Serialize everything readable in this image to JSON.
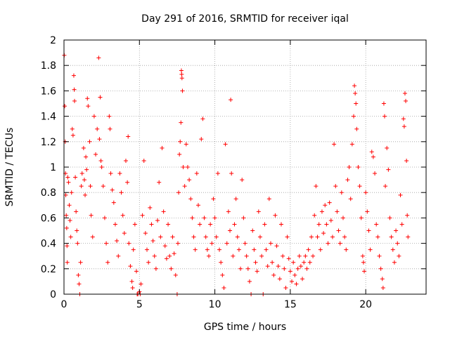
{
  "chart_data": {
    "type": "scatter",
    "title": "Day 291 of 2016, SRMTID for receiver iqal",
    "xlabel": "GPS time / hours",
    "ylabel": "SRMTID / TECUs",
    "xlim": [
      0,
      24
    ],
    "ylim": [
      0,
      2
    ],
    "grid": true,
    "marker": "+",
    "series_color": "#ff0000",
    "x_ticks": [
      0,
      5,
      10,
      15,
      20
    ],
    "x_tick_labels": [
      "0",
      "5",
      "10",
      "15",
      "20"
    ],
    "y_ticks": [
      0,
      0.2,
      0.4,
      0.6,
      0.8,
      1,
      1.2,
      1.4,
      1.6,
      1.8,
      2
    ],
    "y_tick_labels": [
      "0",
      "0.2",
      "0.4",
      "0.6",
      "0.8",
      "1",
      "1.2",
      "1.4",
      "1.6",
      "1.8",
      "2"
    ],
    "series": [
      {
        "name": "SRMTID",
        "points": [
          [
            0.02,
            1.88
          ],
          [
            0.05,
            1.48
          ],
          [
            0.08,
            1.2
          ],
          [
            0.1,
            0.95
          ],
          [
            0.12,
            0.78
          ],
          [
            0.15,
            0.62
          ],
          [
            0.18,
            0.52
          ],
          [
            0.2,
            0.38
          ],
          [
            0.22,
            0.25
          ],
          [
            0.25,
            0.92
          ],
          [
            0.3,
            0.88
          ],
          [
            0.35,
            0.7
          ],
          [
            0.4,
            0.58
          ],
          [
            0.45,
            0.45
          ],
          [
            0.5,
            0.8
          ],
          [
            0.55,
            1.3
          ],
          [
            0.6,
            1.25
          ],
          [
            0.65,
            1.72
          ],
          [
            0.68,
            1.61
          ],
          [
            0.7,
            1.52
          ],
          [
            0.75,
            0.92
          ],
          [
            0.8,
            0.65
          ],
          [
            0.85,
            0.5
          ],
          [
            0.9,
            0.4
          ],
          [
            0.95,
            0.15
          ],
          [
            1.0,
            0.08
          ],
          [
            1.05,
            0.0
          ],
          [
            1.1,
            0.25
          ],
          [
            1.15,
            0.85
          ],
          [
            1.2,
            0.95
          ],
          [
            1.3,
            1.15
          ],
          [
            1.35,
            0.9
          ],
          [
            1.4,
            0.78
          ],
          [
            1.45,
            1.08
          ],
          [
            1.5,
            0.98
          ],
          [
            1.55,
            1.54
          ],
          [
            1.6,
            1.48
          ],
          [
            1.7,
            1.2
          ],
          [
            1.75,
            0.85
          ],
          [
            1.8,
            0.62
          ],
          [
            1.9,
            0.45
          ],
          [
            2.0,
            1.4
          ],
          [
            2.1,
            1.1
          ],
          [
            2.2,
            1.3
          ],
          [
            2.3,
            1.86
          ],
          [
            2.35,
            1.22
          ],
          [
            2.4,
            1.55
          ],
          [
            2.45,
            1.05
          ],
          [
            2.5,
            1.0
          ],
          [
            2.6,
            0.85
          ],
          [
            2.7,
            0.6
          ],
          [
            2.8,
            0.4
          ],
          [
            2.9,
            0.25
          ],
          [
            3.0,
            1.4
          ],
          [
            3.05,
            1.3
          ],
          [
            3.1,
            0.95
          ],
          [
            3.2,
            0.82
          ],
          [
            3.3,
            0.72
          ],
          [
            3.4,
            0.55
          ],
          [
            3.5,
            0.42
          ],
          [
            3.6,
            0.3
          ],
          [
            3.7,
            0.95
          ],
          [
            3.8,
            0.8
          ],
          [
            3.9,
            0.62
          ],
          [
            4.0,
            0.48
          ],
          [
            4.1,
            1.05
          ],
          [
            4.2,
            0.88
          ],
          [
            4.25,
            1.24
          ],
          [
            4.3,
            0.4
          ],
          [
            4.4,
            0.22
          ],
          [
            4.5,
            0.1
          ],
          [
            4.55,
            0.05
          ],
          [
            4.6,
            0.35
          ],
          [
            4.7,
            0.55
          ],
          [
            4.8,
            0.18
          ],
          [
            4.85,
            0.0
          ],
          [
            4.9,
            0.0
          ],
          [
            5.0,
            0.02
          ],
          [
            5.05,
            0.0
          ],
          [
            5.1,
            0.08
          ],
          [
            5.2,
            0.62
          ],
          [
            5.3,
            1.05
          ],
          [
            5.4,
            0.48
          ],
          [
            5.5,
            0.35
          ],
          [
            5.6,
            0.25
          ],
          [
            5.7,
            0.68
          ],
          [
            5.8,
            0.55
          ],
          [
            5.9,
            0.42
          ],
          [
            6.0,
            0.3
          ],
          [
            6.1,
            0.2
          ],
          [
            6.2,
            0.58
          ],
          [
            6.3,
            0.88
          ],
          [
            6.4,
            0.45
          ],
          [
            6.5,
            1.15
          ],
          [
            6.6,
            0.65
          ],
          [
            6.7,
            0.38
          ],
          [
            6.8,
            0.28
          ],
          [
            6.9,
            0.55
          ],
          [
            7.0,
            0.3
          ],
          [
            7.1,
            0.2
          ],
          [
            7.2,
            0.45
          ],
          [
            7.3,
            0.32
          ],
          [
            7.4,
            0.15
          ],
          [
            7.5,
            0.0
          ],
          [
            7.55,
            0.4
          ],
          [
            7.6,
            0.8
          ],
          [
            7.65,
            1.1
          ],
          [
            7.7,
            1.2
          ],
          [
            7.75,
            1.35
          ],
          [
            7.78,
            1.76
          ],
          [
            7.8,
            1.73
          ],
          [
            7.82,
            1.7
          ],
          [
            7.85,
            1.6
          ],
          [
            7.9,
            1.0
          ],
          [
            8.0,
            0.85
          ],
          [
            8.1,
            1.18
          ],
          [
            8.2,
            1.0
          ],
          [
            8.3,
            0.9
          ],
          [
            8.4,
            0.75
          ],
          [
            8.5,
            0.6
          ],
          [
            8.6,
            0.45
          ],
          [
            8.7,
            0.35
          ],
          [
            8.8,
            0.95
          ],
          [
            8.9,
            0.7
          ],
          [
            9.0,
            0.55
          ],
          [
            9.1,
            1.22
          ],
          [
            9.2,
            1.38
          ],
          [
            9.3,
            0.6
          ],
          [
            9.4,
            0.45
          ],
          [
            9.5,
            0.35
          ],
          [
            9.6,
            0.3
          ],
          [
            9.7,
            0.55
          ],
          [
            9.8,
            0.4
          ],
          [
            9.9,
            0.75
          ],
          [
            10.0,
            0.6
          ],
          [
            10.1,
            0.45
          ],
          [
            10.2,
            0.95
          ],
          [
            10.3,
            0.35
          ],
          [
            10.4,
            0.25
          ],
          [
            10.5,
            0.15
          ],
          [
            10.6,
            0.05
          ],
          [
            10.7,
            1.18
          ],
          [
            10.8,
            0.4
          ],
          [
            10.9,
            0.65
          ],
          [
            11.0,
            0.5
          ],
          [
            11.05,
            1.53
          ],
          [
            11.1,
            0.95
          ],
          [
            11.2,
            0.3
          ],
          [
            11.3,
            0.55
          ],
          [
            11.4,
            0.75
          ],
          [
            11.5,
            0.45
          ],
          [
            11.6,
            0.35
          ],
          [
            11.7,
            0.2
          ],
          [
            11.8,
            0.9
          ],
          [
            11.9,
            0.6
          ],
          [
            12.0,
            0.4
          ],
          [
            12.1,
            0.3
          ],
          [
            12.2,
            0.2
          ],
          [
            12.3,
            0.1
          ],
          [
            12.4,
            0.0
          ],
          [
            12.5,
            0.5
          ],
          [
            12.6,
            0.35
          ],
          [
            12.7,
            0.25
          ],
          [
            12.8,
            0.18
          ],
          [
            12.9,
            0.65
          ],
          [
            13.0,
            0.45
          ],
          [
            13.1,
            0.3
          ],
          [
            13.2,
            0.0
          ],
          [
            13.3,
            0.55
          ],
          [
            13.4,
            0.35
          ],
          [
            13.5,
            0.22
          ],
          [
            13.6,
            0.75
          ],
          [
            13.7,
            0.4
          ],
          [
            13.8,
            0.25
          ],
          [
            13.9,
            0.15
          ],
          [
            14.0,
            0.62
          ],
          [
            14.1,
            0.38
          ],
          [
            14.2,
            0.22
          ],
          [
            14.3,
            0.12
          ],
          [
            14.4,
            0.55
          ],
          [
            14.5,
            0.3
          ],
          [
            14.6,
            0.2
          ],
          [
            14.7,
            0.05
          ],
          [
            14.8,
            0.45
          ],
          [
            14.9,
            0.28
          ],
          [
            15.0,
            0.18
          ],
          [
            15.1,
            0.1
          ],
          [
            15.2,
            0.25
          ],
          [
            15.3,
            0.15
          ],
          [
            15.4,
            0.08
          ],
          [
            15.5,
            0.2
          ],
          [
            15.6,
            0.3
          ],
          [
            15.7,
            0.22
          ],
          [
            15.8,
            0.12
          ],
          [
            15.9,
            0.25
          ],
          [
            16.0,
            0.3
          ],
          [
            16.1,
            0.2
          ],
          [
            16.2,
            0.35
          ],
          [
            16.3,
            0.25
          ],
          [
            16.4,
            0.45
          ],
          [
            16.5,
            0.3
          ],
          [
            16.6,
            0.62
          ],
          [
            16.7,
            0.85
          ],
          [
            16.8,
            0.45
          ],
          [
            16.9,
            0.55
          ],
          [
            17.0,
            0.35
          ],
          [
            17.1,
            0.65
          ],
          [
            17.2,
            0.48
          ],
          [
            17.3,
            0.7
          ],
          [
            17.4,
            0.55
          ],
          [
            17.5,
            0.4
          ],
          [
            17.6,
            0.72
          ],
          [
            17.7,
            0.58
          ],
          [
            17.8,
            0.45
          ],
          [
            17.9,
            1.18
          ],
          [
            18.0,
            0.85
          ],
          [
            18.1,
            0.65
          ],
          [
            18.2,
            0.5
          ],
          [
            18.3,
            0.4
          ],
          [
            18.4,
            0.8
          ],
          [
            18.5,
            0.6
          ],
          [
            18.6,
            0.45
          ],
          [
            18.7,
            0.35
          ],
          [
            18.8,
            0.9
          ],
          [
            18.9,
            1.0
          ],
          [
            19.0,
            0.75
          ],
          [
            19.1,
            1.18
          ],
          [
            19.2,
            1.4
          ],
          [
            19.25,
            1.64
          ],
          [
            19.3,
            1.58
          ],
          [
            19.35,
            1.5
          ],
          [
            19.4,
            1.3
          ],
          [
            19.5,
            1.0
          ],
          [
            19.6,
            0.85
          ],
          [
            19.7,
            0.6
          ],
          [
            19.8,
            0.3
          ],
          [
            19.85,
            0.25
          ],
          [
            19.9,
            0.18
          ],
          [
            20.0,
            0.8
          ],
          [
            20.1,
            0.65
          ],
          [
            20.2,
            0.5
          ],
          [
            20.3,
            0.35
          ],
          [
            20.4,
            1.12
          ],
          [
            20.5,
            1.08
          ],
          [
            20.6,
            0.95
          ],
          [
            20.7,
            0.55
          ],
          [
            20.8,
            0.45
          ],
          [
            20.9,
            0.3
          ],
          [
            21.0,
            0.2
          ],
          [
            21.1,
            0.12
          ],
          [
            21.15,
            0.05
          ],
          [
            21.2,
            1.5
          ],
          [
            21.25,
            1.4
          ],
          [
            21.3,
            0.85
          ],
          [
            21.4,
            1.15
          ],
          [
            21.5,
            0.98
          ],
          [
            21.6,
            0.6
          ],
          [
            21.7,
            0.45
          ],
          [
            21.8,
            0.35
          ],
          [
            21.9,
            0.25
          ],
          [
            22.0,
            0.5
          ],
          [
            22.1,
            0.4
          ],
          [
            22.2,
            0.3
          ],
          [
            22.3,
            0.78
          ],
          [
            22.4,
            0.55
          ],
          [
            22.5,
            1.38
          ],
          [
            22.55,
            1.32
          ],
          [
            22.6,
            1.58
          ],
          [
            22.65,
            1.52
          ],
          [
            22.7,
            1.05
          ],
          [
            22.75,
            0.62
          ],
          [
            22.8,
            0.45
          ]
        ]
      }
    ]
  }
}
